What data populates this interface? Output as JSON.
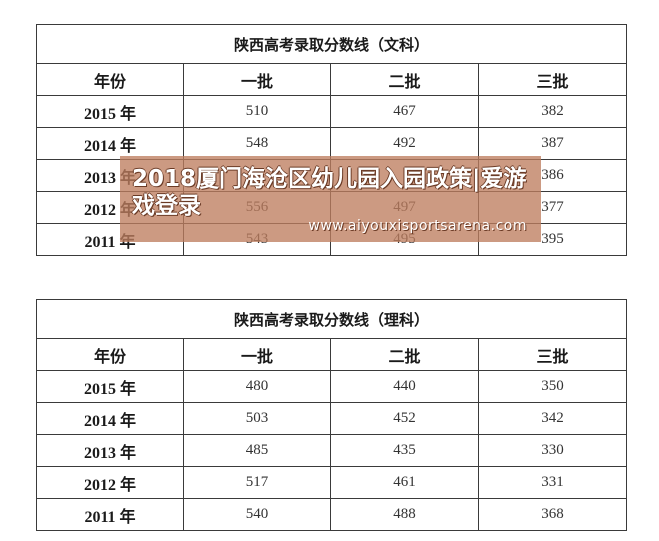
{
  "tables": [
    {
      "title": "陕西高考录取分数线（文科）",
      "headers": [
        "年份",
        "一批",
        "二批",
        "三批"
      ],
      "rows": [
        [
          "2015 年",
          "510",
          "467",
          "382"
        ],
        [
          "2014 年",
          "548",
          "492",
          "387"
        ],
        [
          "2013 年",
          "",
          "",
          "386"
        ],
        [
          "2012 年",
          "556",
          "497",
          "377"
        ],
        [
          "2011 年",
          "543",
          "495",
          "395"
        ]
      ]
    },
    {
      "title": "陕西高考录取分数线（理科）",
      "headers": [
        "年份",
        "一批",
        "二批",
        "三批"
      ],
      "rows": [
        [
          "2015 年",
          "480",
          "440",
          "350"
        ],
        [
          "2014 年",
          "503",
          "452",
          "342"
        ],
        [
          "2013 年",
          "485",
          "435",
          "330"
        ],
        [
          "2012 年",
          "517",
          "461",
          "331"
        ],
        [
          "2011 年",
          "540",
          "488",
          "368"
        ]
      ]
    }
  ],
  "overlay": {
    "headline": "2018厦门海沧区幼儿园入园政策|爱游戏登录",
    "url": "www.aiyouxisportsarena.com"
  }
}
